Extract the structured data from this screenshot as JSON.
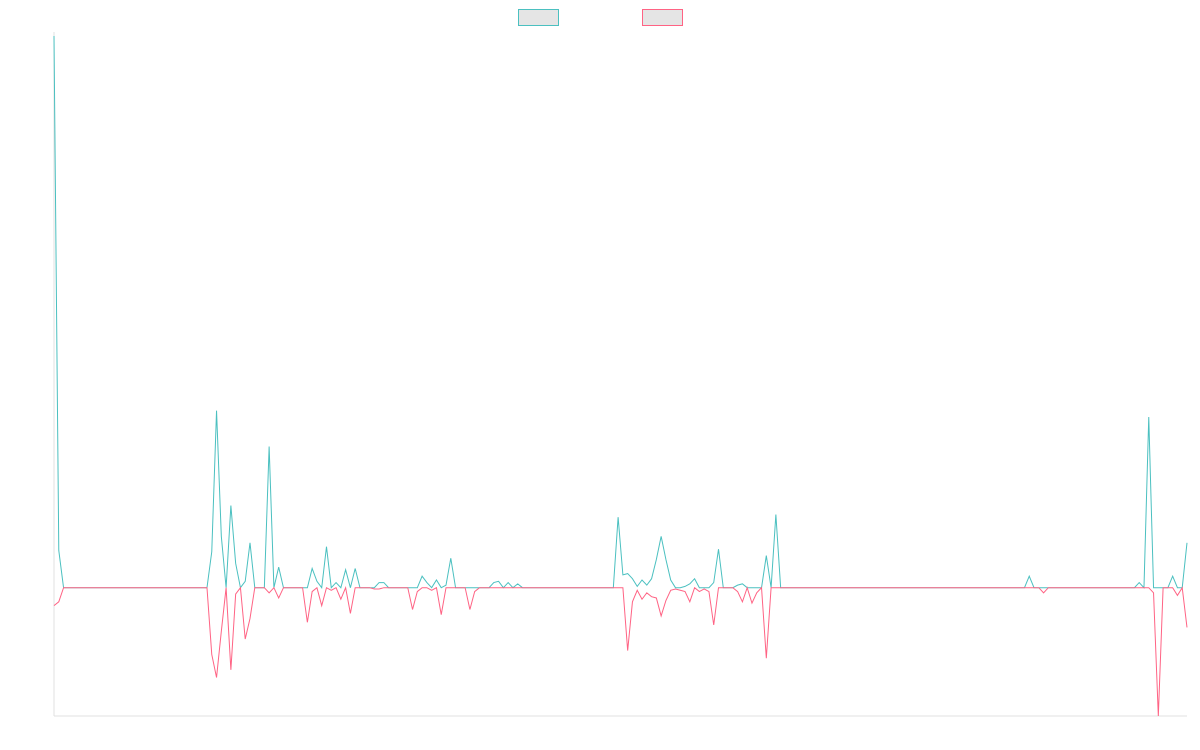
{
  "chart_data": {
    "type": "line",
    "title": "",
    "xlabel": "",
    "ylabel": "",
    "ylim": [
      -100,
      430
    ],
    "grid": false,
    "legend": "top-center",
    "series": [
      {
        "name": "",
        "color": "#4bc0c0",
        "values": [
          430,
          29,
          0,
          0,
          0,
          0,
          0,
          0,
          0,
          0,
          0,
          0,
          0,
          0,
          0,
          0,
          0,
          0,
          0,
          0,
          0,
          0,
          0,
          0,
          0,
          0,
          0,
          0,
          0,
          0,
          0,
          0,
          0,
          28,
          138,
          40,
          0,
          64,
          19,
          0,
          5,
          35,
          0,
          0,
          0,
          110,
          0,
          16,
          0,
          0,
          0,
          0,
          0,
          0,
          15,
          5,
          0,
          32,
          0,
          4,
          0,
          14,
          0,
          15,
          0,
          0,
          0,
          0,
          4,
          4,
          0,
          0,
          0,
          0,
          0,
          0,
          0,
          9,
          4,
          0,
          6,
          0,
          2,
          23,
          0,
          0,
          0,
          0,
          0,
          0,
          0,
          0,
          4,
          5,
          0,
          4,
          0,
          3,
          0,
          0,
          0,
          0,
          0,
          0,
          0,
          0,
          0,
          0,
          0,
          0,
          0,
          0,
          0,
          0,
          0,
          0,
          0,
          0,
          55,
          10,
          11,
          7,
          1,
          6,
          2,
          7,
          22,
          40,
          22,
          6,
          0,
          0,
          1,
          3,
          7,
          0,
          0,
          0,
          4,
          30,
          0,
          0,
          0,
          2,
          3,
          0,
          0,
          0,
          0,
          25,
          0,
          57,
          0,
          0,
          0,
          0,
          0,
          0,
          0,
          0,
          0,
          0,
          0,
          0,
          0,
          0,
          0,
          0,
          0,
          0,
          0,
          0,
          0,
          0,
          0,
          0,
          0,
          0,
          0,
          0,
          0,
          0,
          0,
          0,
          0,
          0,
          0,
          0,
          0,
          0,
          0,
          0,
          0,
          0,
          0,
          0,
          0,
          0,
          0,
          0,
          0,
          0,
          0,
          0,
          9,
          0,
          0,
          0,
          0,
          0,
          0,
          0,
          0,
          0,
          0,
          0,
          0,
          0,
          0,
          0,
          0,
          0,
          0,
          0,
          0,
          0,
          0,
          4,
          0,
          133,
          0,
          0,
          0,
          0,
          9,
          0,
          0,
          35
        ]
      },
      {
        "name": "",
        "color": "#ff6384",
        "values": [
          -14,
          -11,
          0,
          0,
          0,
          0,
          0,
          0,
          0,
          0,
          0,
          0,
          0,
          0,
          0,
          0,
          0,
          0,
          0,
          0,
          0,
          0,
          0,
          0,
          0,
          0,
          0,
          0,
          0,
          0,
          0,
          0,
          0,
          -52,
          -70,
          -34,
          0,
          -64,
          -5,
          0,
          -40,
          -24,
          0,
          0,
          0,
          -4,
          0,
          -8,
          0,
          0,
          0,
          0,
          0,
          -27,
          -3,
          0,
          -14,
          0,
          -2,
          0,
          -9,
          0,
          -20,
          0,
          0,
          0,
          0,
          -1,
          -1,
          0,
          0,
          0,
          0,
          0,
          0,
          -17,
          -3,
          0,
          0,
          -2,
          0,
          -21,
          0,
          0,
          0,
          0,
          0,
          -17,
          -3,
          0,
          0,
          0,
          0,
          0,
          0,
          0,
          0,
          0,
          0,
          0,
          0,
          0,
          0,
          0,
          0,
          0,
          0,
          0,
          0,
          0,
          0,
          0,
          0,
          0,
          0,
          0,
          0,
          0,
          0,
          0,
          -49,
          -11,
          -2,
          -9,
          -4,
          -7,
          -8,
          -22,
          -10,
          -2,
          -1,
          -2,
          -3,
          -11,
          0,
          -3,
          -1,
          -3,
          -29,
          0,
          0,
          0,
          0,
          -3,
          -11,
          0,
          -12,
          -4,
          0,
          -55,
          0,
          0,
          0,
          0,
          0,
          0,
          0,
          0,
          0,
          0,
          0,
          0,
          0,
          0,
          0,
          0,
          0,
          0,
          0,
          0,
          0,
          0,
          0,
          0,
          0,
          0,
          0,
          0,
          0,
          0,
          0,
          0,
          0,
          0,
          0,
          0,
          0,
          0,
          0,
          0,
          0,
          0,
          0,
          0,
          0,
          0,
          0,
          0,
          0,
          0,
          0,
          0,
          0,
          0,
          0,
          0,
          0,
          -4,
          0,
          0,
          0,
          0,
          0,
          0,
          0,
          0,
          0,
          0,
          0,
          0,
          0,
          0,
          0,
          0,
          0,
          0,
          0,
          0,
          0,
          0,
          -4,
          -100,
          0,
          0,
          0,
          -6,
          0,
          -31
        ]
      }
    ]
  }
}
